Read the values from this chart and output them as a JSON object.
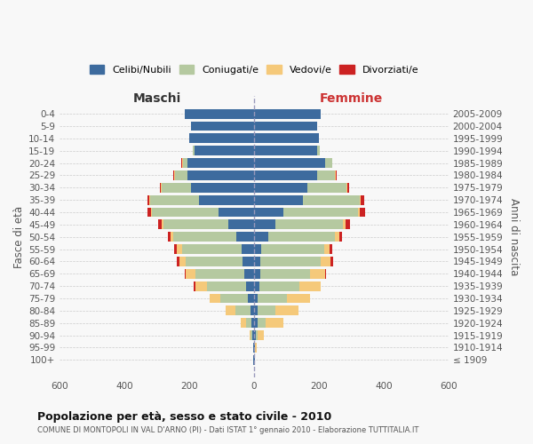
{
  "age_groups": [
    "100+",
    "95-99",
    "90-94",
    "85-89",
    "80-84",
    "75-79",
    "70-74",
    "65-69",
    "60-64",
    "55-59",
    "50-54",
    "45-49",
    "40-44",
    "35-39",
    "30-34",
    "25-29",
    "20-24",
    "15-19",
    "10-14",
    "5-9",
    "0-4"
  ],
  "birth_years": [
    "≤ 1909",
    "1910-1914",
    "1915-1919",
    "1920-1924",
    "1925-1929",
    "1930-1934",
    "1935-1939",
    "1940-1944",
    "1945-1949",
    "1950-1954",
    "1955-1959",
    "1960-1964",
    "1965-1969",
    "1970-1974",
    "1975-1979",
    "1980-1984",
    "1985-1989",
    "1990-1994",
    "1995-1999",
    "2000-2004",
    "2005-2009"
  ],
  "male_celibe": [
    2,
    2,
    5,
    8,
    12,
    18,
    25,
    30,
    35,
    38,
    55,
    80,
    110,
    170,
    195,
    205,
    205,
    185,
    200,
    195,
    215
  ],
  "male_coniugato": [
    0,
    0,
    5,
    18,
    45,
    85,
    120,
    150,
    175,
    185,
    195,
    200,
    205,
    150,
    90,
    40,
    15,
    5,
    0,
    0,
    0
  ],
  "male_vedovo": [
    0,
    0,
    5,
    15,
    30,
    35,
    35,
    30,
    20,
    15,
    8,
    5,
    3,
    3,
    2,
    2,
    2,
    0,
    0,
    0,
    0
  ],
  "male_divorziato": [
    0,
    0,
    0,
    0,
    0,
    0,
    8,
    5,
    8,
    8,
    8,
    12,
    12,
    5,
    5,
    2,
    2,
    0,
    0,
    0,
    0
  ],
  "female_celibe": [
    2,
    3,
    5,
    10,
    12,
    12,
    15,
    18,
    20,
    22,
    45,
    65,
    90,
    150,
    165,
    195,
    220,
    195,
    200,
    195,
    205
  ],
  "female_coniugato": [
    0,
    0,
    5,
    25,
    55,
    90,
    125,
    155,
    185,
    195,
    205,
    210,
    230,
    175,
    120,
    55,
    20,
    8,
    0,
    0,
    0
  ],
  "female_vedovo": [
    0,
    5,
    20,
    55,
    70,
    70,
    65,
    45,
    30,
    15,
    12,
    8,
    5,
    3,
    2,
    2,
    0,
    0,
    0,
    0,
    0
  ],
  "female_divorziato": [
    0,
    0,
    0,
    0,
    0,
    0,
    0,
    5,
    8,
    8,
    8,
    12,
    18,
    12,
    5,
    2,
    2,
    0,
    0,
    0,
    0
  ],
  "colors": {
    "celibe": "#3d6b9e",
    "coniugato": "#b5c9a0",
    "vedovo": "#f5c97a",
    "divorziato": "#cc2222"
  },
  "xlim": 600,
  "title": "Popolazione per età, sesso e stato civile - 2010",
  "subtitle": "COMUNE DI MONTOPOLI IN VAL D'ARNO (PI) - Dati ISTAT 1° gennaio 2010 - Elaborazione TUTTITALIA.IT",
  "xlabel_left": "Maschi",
  "xlabel_right": "Femmine",
  "ylabel_left": "Fasce di età",
  "ylabel_right": "Anni di nascita",
  "bg_color": "#f8f8f8",
  "grid_color": "#cccccc"
}
